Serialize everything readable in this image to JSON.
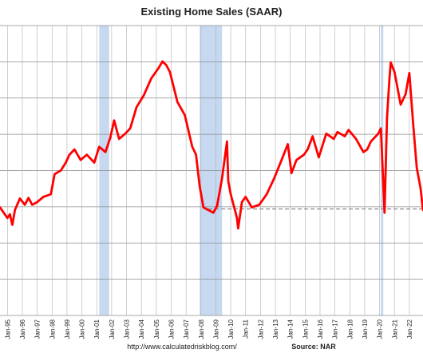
{
  "chart_data": {
    "type": "line",
    "title": "Existing Home Sales (SAAR)",
    "xlabel": "",
    "ylabel": "",
    "xlim": [
      "1994-07",
      "2022-12"
    ],
    "x_tick_labels": [
      "Jan-95",
      "Jan-96",
      "Jan-97",
      "Jan-98",
      "Jan-99",
      "Jan-00",
      "Jan-01",
      "Jan-02",
      "Jan-03",
      "Jan-04",
      "Jan-05",
      "Jan-06",
      "Jan-07",
      "Jan-08",
      "Jan-09",
      "Jan-10",
      "Jan-11",
      "Jan-12",
      "Jan-13",
      "Jan-14",
      "Jan-15",
      "Jan-16",
      "Jan-17",
      "Jan-18",
      "Jan-19",
      "Jan-20",
      "Jan-21",
      "Jan-22"
    ],
    "y_gridline_count": 8,
    "grid": true,
    "recessions": [
      {
        "start": "2001-03",
        "end": "2001-11"
      },
      {
        "start": "2007-12",
        "end": "2009-06"
      },
      {
        "start": "2020-02",
        "end": "2020-04"
      }
    ],
    "reference_line": {
      "level": 4.02,
      "from": "2008-07",
      "to": "2022-12"
    },
    "series": [
      {
        "color": "#ff0000",
        "points": [
          [
            "1994-07",
            4.05
          ],
          [
            "1995-01",
            3.85
          ],
          [
            "1995-03",
            3.92
          ],
          [
            "1995-05",
            3.72
          ],
          [
            "1995-07",
            4.0
          ],
          [
            "1995-11",
            4.22
          ],
          [
            "1996-03",
            4.1
          ],
          [
            "1996-06",
            4.23
          ],
          [
            "1996-09",
            4.1
          ],
          [
            "1997-01",
            4.15
          ],
          [
            "1997-06",
            4.25
          ],
          [
            "1997-12",
            4.3
          ],
          [
            "1998-03",
            4.68
          ],
          [
            "1998-08",
            4.75
          ],
          [
            "1998-12",
            4.9
          ],
          [
            "1999-03",
            5.05
          ],
          [
            "1999-07",
            5.15
          ],
          [
            "1999-12",
            4.95
          ],
          [
            "2000-05",
            5.05
          ],
          [
            "2000-11",
            4.9
          ],
          [
            "2001-03",
            5.2
          ],
          [
            "2001-08",
            5.1
          ],
          [
            "2001-12",
            5.38
          ],
          [
            "2002-03",
            5.7
          ],
          [
            "2002-07",
            5.35
          ],
          [
            "2002-12",
            5.45
          ],
          [
            "2003-04",
            5.55
          ],
          [
            "2003-09",
            5.95
          ],
          [
            "2004-03",
            6.18
          ],
          [
            "2004-09",
            6.5
          ],
          [
            "2004-12",
            6.6
          ],
          [
            "2005-03",
            6.7
          ],
          [
            "2005-06",
            6.82
          ],
          [
            "2005-09",
            6.75
          ],
          [
            "2005-12",
            6.62
          ],
          [
            "2006-06",
            6.05
          ],
          [
            "2006-12",
            5.8
          ],
          [
            "2007-03",
            5.5
          ],
          [
            "2007-06",
            5.2
          ],
          [
            "2007-09",
            5.05
          ],
          [
            "2007-12",
            4.45
          ],
          [
            "2008-03",
            4.05
          ],
          [
            "2008-07",
            4.0
          ],
          [
            "2008-11",
            3.95
          ],
          [
            "2009-02",
            4.08
          ],
          [
            "2009-06",
            4.6
          ],
          [
            "2009-10",
            5.3
          ],
          [
            "2009-11",
            4.55
          ],
          [
            "2010-01",
            4.3
          ],
          [
            "2010-06",
            3.85
          ],
          [
            "2010-07",
            3.65
          ],
          [
            "2010-10",
            4.15
          ],
          [
            "2011-01",
            4.25
          ],
          [
            "2011-06",
            4.05
          ],
          [
            "2011-12",
            4.1
          ],
          [
            "2012-06",
            4.3
          ],
          [
            "2012-12",
            4.6
          ],
          [
            "2013-06",
            4.95
          ],
          [
            "2013-11",
            5.25
          ],
          [
            "2014-02",
            4.7
          ],
          [
            "2014-06",
            4.95
          ],
          [
            "2014-12",
            5.05
          ],
          [
            "2015-03",
            5.15
          ],
          [
            "2015-07",
            5.4
          ],
          [
            "2015-12",
            5.0
          ],
          [
            "2016-06",
            5.45
          ],
          [
            "2016-12",
            5.35
          ],
          [
            "2017-03",
            5.48
          ],
          [
            "2017-09",
            5.4
          ],
          [
            "2017-12",
            5.52
          ],
          [
            "2018-06",
            5.35
          ],
          [
            "2018-12",
            5.1
          ],
          [
            "2019-03",
            5.15
          ],
          [
            "2019-06",
            5.3
          ],
          [
            "2019-12",
            5.45
          ],
          [
            "2020-02",
            5.55
          ],
          [
            "2020-05",
            3.95
          ],
          [
            "2020-07",
            5.75
          ],
          [
            "2020-09",
            6.5
          ],
          [
            "2020-10",
            6.8
          ],
          [
            "2021-01",
            6.62
          ],
          [
            "2021-06",
            6.0
          ],
          [
            "2021-10",
            6.2
          ],
          [
            "2022-01",
            6.6
          ],
          [
            "2022-04",
            5.65
          ],
          [
            "2022-07",
            4.8
          ],
          [
            "2022-10",
            4.42
          ],
          [
            "2022-12",
            4.0
          ]
        ]
      }
    ]
  },
  "footer": {
    "url": "http://www.calculatedriskblog.com/",
    "source": "Source: NAR"
  }
}
